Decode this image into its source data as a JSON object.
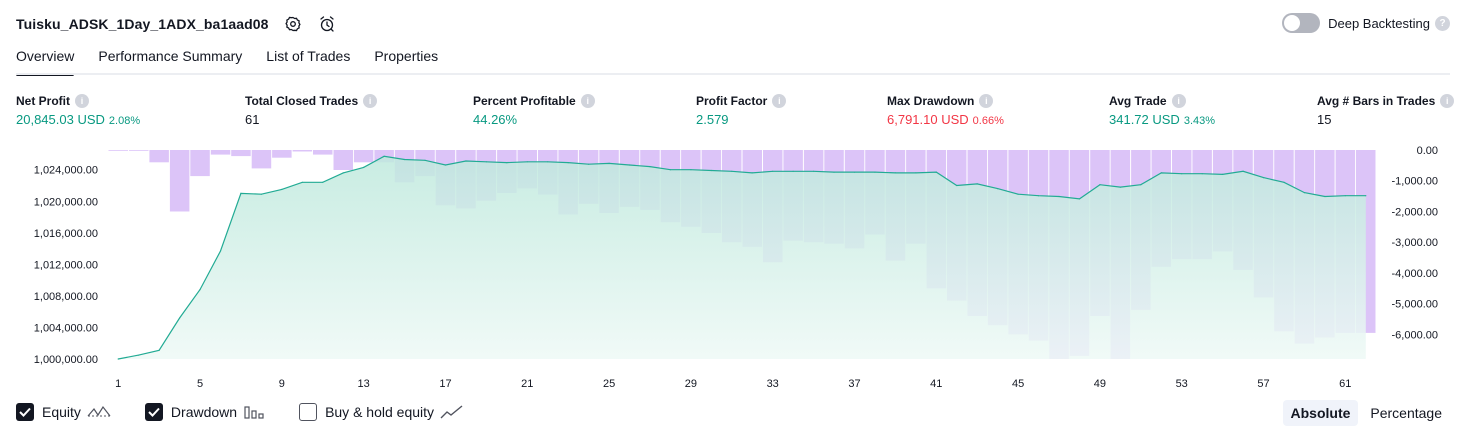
{
  "header": {
    "title": "Tuisku_ADSK_1Day_1ADX_ba1aad08"
  },
  "deep_backtesting": {
    "label": "Deep Backtesting",
    "enabled": false
  },
  "tabs": [
    {
      "label": "Overview",
      "active": true
    },
    {
      "label": "Performance Summary",
      "active": false
    },
    {
      "label": "List of Trades",
      "active": false
    },
    {
      "label": "Properties",
      "active": false
    }
  ],
  "stats": {
    "net_profit": {
      "label": "Net Profit",
      "value": "20,845.03 USD",
      "sub": "2.08%"
    },
    "total_closed_trades": {
      "label": "Total Closed Trades",
      "value": "61"
    },
    "percent_profitable": {
      "label": "Percent Profitable",
      "value": "44.26%"
    },
    "profit_factor": {
      "label": "Profit Factor",
      "value": "2.579"
    },
    "max_drawdown": {
      "label": "Max Drawdown",
      "value": "6,791.10 USD",
      "sub": "0.66%"
    },
    "avg_trade": {
      "label": "Avg Trade",
      "value": "341.72 USD",
      "sub": "3.43%"
    },
    "avg_bars": {
      "label": "Avg # Bars in Trades",
      "value": "15"
    }
  },
  "colors": {
    "equity_line": "#22ab94",
    "equity_fill": "#cdeee6",
    "drawdown_bar": "#dcc4f8",
    "profit": "#089981",
    "loss": "#f23645"
  },
  "legend": {
    "equity": {
      "label": "Equity",
      "checked": true,
      "icon": "equity-line-icon"
    },
    "drawdown": {
      "label": "Drawdown",
      "checked": true,
      "icon": "bars-icon"
    },
    "buy_hold": {
      "label": "Buy & hold equity",
      "checked": false,
      "icon": "trend-line-icon"
    }
  },
  "mode": {
    "absolute": "Absolute",
    "percentage": "Percentage",
    "selected": "Absolute"
  },
  "chart_data": {
    "type": "area",
    "x": [
      1,
      2,
      3,
      4,
      5,
      6,
      7,
      8,
      9,
      10,
      11,
      12,
      13,
      14,
      15,
      16,
      17,
      18,
      19,
      20,
      21,
      22,
      23,
      24,
      25,
      26,
      27,
      28,
      29,
      30,
      31,
      32,
      33,
      34,
      35,
      36,
      37,
      38,
      39,
      40,
      41,
      42,
      43,
      44,
      45,
      46,
      47,
      48,
      49,
      50,
      51,
      52,
      53,
      54,
      55,
      56,
      57,
      58,
      59,
      60,
      61,
      62
    ],
    "x_ticks": [
      1,
      5,
      9,
      13,
      17,
      21,
      25,
      29,
      33,
      37,
      41,
      45,
      49,
      53,
      57,
      61
    ],
    "series": [
      {
        "name": "Equity",
        "axis": "left",
        "values": [
          1000000,
          1000500,
          1001100,
          1005200,
          1008800,
          1013700,
          1021000,
          1020900,
          1021500,
          1022400,
          1022400,
          1023600,
          1024300,
          1025700,
          1025300,
          1025200,
          1024600,
          1025100,
          1025000,
          1024900,
          1025000,
          1025000,
          1024900,
          1024700,
          1024800,
          1024600,
          1024400,
          1024000,
          1024000,
          1023900,
          1023800,
          1023600,
          1023800,
          1023800,
          1023800,
          1023700,
          1023700,
          1023700,
          1023600,
          1023600,
          1023700,
          1022000,
          1022200,
          1021600,
          1020900,
          1020700,
          1020600,
          1020300,
          1022100,
          1021800,
          1022100,
          1023600,
          1023500,
          1023500,
          1023400,
          1023800,
          1023000,
          1022400,
          1021100,
          1020600,
          1020700,
          1020700
        ]
      },
      {
        "name": "Drawdown",
        "axis": "right",
        "type": "bar",
        "values": [
          -10,
          -20,
          -400,
          -2000,
          -850,
          -150,
          -200,
          -600,
          -250,
          -50,
          -150,
          -650,
          -400,
          -400,
          -1050,
          -850,
          -1800,
          -1900,
          -1650,
          -1400,
          -1250,
          -1450,
          -2100,
          -1750,
          -2050,
          -1850,
          -1950,
          -2350,
          -2500,
          -2700,
          -3000,
          -3150,
          -3650,
          -2950,
          -3000,
          -3050,
          -3200,
          -2750,
          -3600,
          -3050,
          -4500,
          -4900,
          -5400,
          -5700,
          -6000,
          -6200,
          -6800,
          -6700,
          -5400,
          -6800,
          -5200,
          -3800,
          -3550,
          -3550,
          -3300,
          -3900,
          -4800,
          -5900,
          -6300,
          -6100,
          -5950,
          -5950
        ]
      }
    ],
    "left_axis": {
      "ticks": [
        "1,000,000.00",
        "1,004,000.00",
        "1,008,000.00",
        "1,012,000.00",
        "1,016,000.00",
        "1,020,000.00",
        "1,024,000.00"
      ],
      "ylim": [
        1000000,
        1026500
      ]
    },
    "right_axis": {
      "ticks": [
        "0.00",
        "-1,000.00",
        "-2,000.00",
        "-3,000.00",
        "-4,000.00",
        "-5,000.00",
        "-6,000.00"
      ],
      "ylim": [
        -6800,
        0
      ]
    },
    "grid": false
  }
}
